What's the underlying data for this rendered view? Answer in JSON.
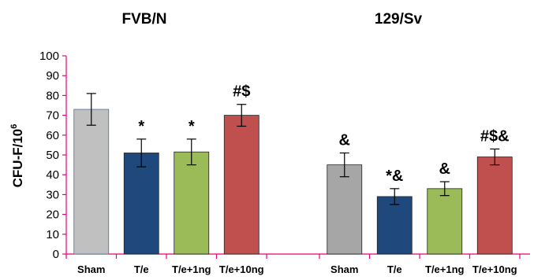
{
  "chart_data": {
    "type": "bar",
    "ylabel": {
      "main": "CFU-F/10",
      "sup": "6"
    },
    "ylim": [
      0,
      100
    ],
    "yticks": [
      0,
      10,
      20,
      30,
      40,
      50,
      60,
      70,
      80,
      90,
      100
    ],
    "grid": false,
    "legend": "none",
    "colors": {
      "axis": "#e5007e",
      "sham_fvb": "#c0c0c0",
      "sham_129": "#a6a6a6",
      "te": "#1f487c",
      "te_1ng": "#9bbb59",
      "te_10ng": "#c0504d",
      "bar_outline_fvb_sham": "#4f6fa0"
    },
    "groups": [
      {
        "title": "FVB/N",
        "categories": [
          "Sham",
          "T/e",
          "T/e+1ng",
          "T/e+10ng"
        ],
        "values": [
          73,
          51,
          51.5,
          70
        ],
        "errors": [
          8,
          7,
          6.5,
          5.5
        ],
        "annotations": [
          "",
          "*",
          "*",
          "#$"
        ]
      },
      {
        "title": "129/Sv",
        "categories": [
          "Sham",
          "T/e",
          "T/e+1ng",
          "T/e+10ng"
        ],
        "values": [
          45,
          29,
          33,
          49
        ],
        "errors": [
          6,
          4,
          3.5,
          4
        ],
        "annotations": [
          "&",
          "*&",
          "&",
          "#$&"
        ]
      }
    ]
  }
}
